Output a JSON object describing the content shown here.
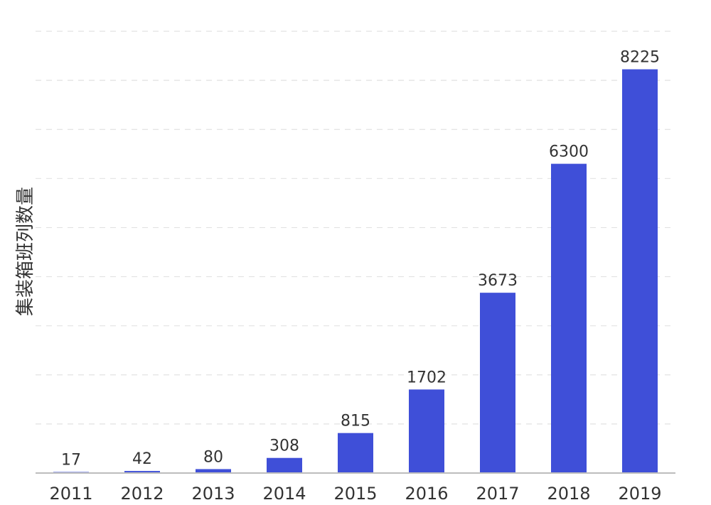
{
  "chart_data": {
    "type": "bar",
    "categories": [
      "2011",
      "2012",
      "2013",
      "2014",
      "2015",
      "2016",
      "2017",
      "2018",
      "2019"
    ],
    "values": [
      17,
      42,
      80,
      308,
      815,
      1702,
      3673,
      6300,
      8225
    ],
    "title": "",
    "xlabel": "",
    "ylabel": "集装箱班列数量",
    "ylim": [
      0,
      9000
    ],
    "grid": true,
    "show_y_tick_labels": false,
    "bar_color": "#3f4fd8"
  }
}
